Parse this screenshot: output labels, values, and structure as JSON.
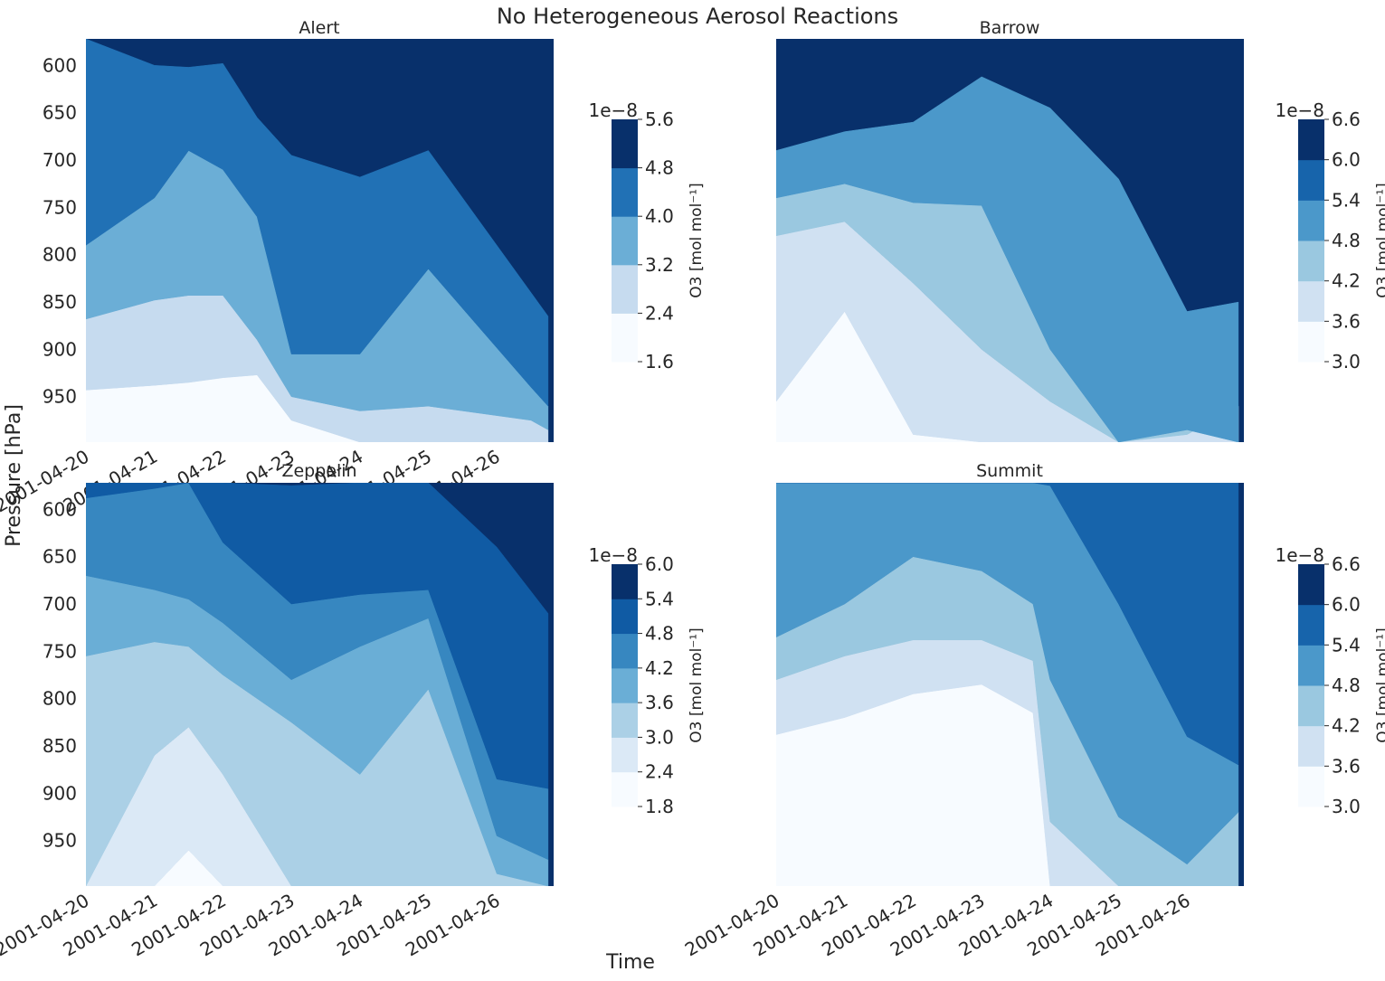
{
  "figure": {
    "title": "No Heterogeneous Aerosol Reactions",
    "ylabel": "Pressure [hPa]",
    "xlabel": "Time"
  },
  "chart_data": [
    {
      "type": "contour",
      "title": "Alert",
      "x_ticks": [
        "2001-04-20",
        "2001-04-21",
        "2001-04-22",
        "2001-04-23",
        "2001-04-24",
        "2001-04-25",
        "2001-04-26"
      ],
      "y_ticks": [
        600,
        650,
        700,
        750,
        800,
        850,
        900,
        950
      ],
      "ylim": [
        998,
        572
      ],
      "colorbar": {
        "levels": [
          "1.6",
          "2.4",
          "3.2",
          "4.0",
          "4.8",
          "5.6"
        ],
        "exponent": "1e−8",
        "label": "O3 [mol mol⁻¹]"
      },
      "colors": [
        "#f7fbff",
        "#c6dbef",
        "#6baed6",
        "#2171b5",
        "#08306b"
      ],
      "bands": [
        {
          "x": [
            "2001-04-20",
            "2001-04-21",
            "2001-04-21T12:00",
            "2001-04-22",
            "2001-04-22T12:00",
            "2001-04-23",
            "2001-04-24",
            "2001-04-25",
            "2001-04-26T12:00",
            "2001-04-26T18:00"
          ],
          "lower_hPa": [
            998,
            998,
            998,
            998,
            998,
            998,
            998,
            998,
            998,
            998
          ],
          "upper_hPa": [
            943,
            938,
            935,
            930,
            927,
            975,
            998,
            998,
            998,
            998
          ]
        },
        {
          "x": [
            "2001-04-20",
            "2001-04-21",
            "2001-04-21T12:00",
            "2001-04-22",
            "2001-04-22T12:00",
            "2001-04-23",
            "2001-04-24",
            "2001-04-25",
            "2001-04-26T12:00",
            "2001-04-26T18:00"
          ],
          "lower_hPa": [
            943,
            938,
            935,
            930,
            927,
            975,
            998,
            998,
            998,
            998
          ],
          "upper_hPa": [
            868,
            848,
            843,
            843,
            890,
            950,
            965,
            960,
            975,
            985
          ]
        },
        {
          "x": [
            "2001-04-20",
            "2001-04-21",
            "2001-04-21T12:00",
            "2001-04-22",
            "2001-04-22T12:00",
            "2001-04-23",
            "2001-04-24",
            "2001-04-25",
            "2001-04-26T12:00",
            "2001-04-26T18:00"
          ],
          "lower_hPa": [
            868,
            848,
            843,
            843,
            890,
            950,
            965,
            960,
            975,
            985
          ],
          "upper_hPa": [
            790,
            740,
            690,
            710,
            760,
            905,
            905,
            815,
            940,
            960
          ]
        },
        {
          "x": [
            "2001-04-20",
            "2001-04-21",
            "2001-04-21T12:00",
            "2001-04-22",
            "2001-04-22T12:00",
            "2001-04-23",
            "2001-04-24",
            "2001-04-25",
            "2001-04-26T12:00",
            "2001-04-26T18:00"
          ],
          "lower_hPa": [
            790,
            740,
            690,
            710,
            760,
            905,
            905,
            815,
            940,
            960
          ],
          "upper_hPa": [
            572,
            600,
            602,
            598,
            655,
            695,
            718,
            690,
            840,
            865
          ]
        }
      ]
    },
    {
      "type": "contour",
      "title": "Barrow",
      "x_ticks": [],
      "y_ticks": [],
      "ylim": [
        998,
        572
      ],
      "colorbar": {
        "levels": [
          "3.0",
          "3.6",
          "4.2",
          "4.8",
          "5.4",
          "6.0",
          "6.6"
        ],
        "exponent": "1e−8",
        "label": "O3 [mol mol⁻¹]"
      },
      "colors": [
        "#f7fbff",
        "#d0e1f2",
        "#9ac8e0",
        "#4b98ca",
        "#1764ab",
        "#08306b"
      ],
      "bands": [
        {
          "x": [
            "2001-04-20",
            "2001-04-21",
            "2001-04-22",
            "2001-04-23",
            "2001-04-24",
            "2001-04-25",
            "2001-04-26",
            "2001-04-26T18:00"
          ],
          "lower_hPa": [
            998,
            998,
            998,
            998,
            998,
            998,
            998,
            998
          ],
          "upper_hPa": [
            955,
            860,
            990,
            998,
            998,
            998,
            998,
            998
          ]
        },
        {
          "x": [
            "2001-04-20",
            "2001-04-21",
            "2001-04-22",
            "2001-04-23",
            "2001-04-24",
            "2001-04-25",
            "2001-04-26",
            "2001-04-26T18:00"
          ],
          "lower_hPa": [
            955,
            860,
            990,
            998,
            998,
            998,
            998,
            998
          ],
          "upper_hPa": [
            780,
            765,
            830,
            900,
            955,
            998,
            990,
            960
          ]
        },
        {
          "x": [
            "2001-04-20",
            "2001-04-21",
            "2001-04-22",
            "2001-04-23",
            "2001-04-24",
            "2001-04-25",
            "2001-04-26",
            "2001-04-26T18:00"
          ],
          "lower_hPa": [
            780,
            765,
            830,
            900,
            955,
            998,
            990,
            960
          ],
          "upper_hPa": [
            740,
            725,
            745,
            748,
            900,
            998,
            985,
            998
          ]
        },
        {
          "x": [
            "2001-04-20",
            "2001-04-21",
            "2001-04-22",
            "2001-04-23",
            "2001-04-24",
            "2001-04-25",
            "2001-04-26",
            "2001-04-26T18:00"
          ],
          "lower_hPa": [
            740,
            725,
            745,
            748,
            900,
            998,
            985,
            998
          ],
          "upper_hPa": [
            690,
            670,
            660,
            612,
            645,
            720,
            860,
            850
          ]
        }
      ]
    },
    {
      "type": "contour",
      "title": "Zeppelin",
      "x_ticks": [
        "2001-04-20",
        "2001-04-21",
        "2001-04-22",
        "2001-04-23",
        "2001-04-24",
        "2001-04-25",
        "2001-04-26"
      ],
      "y_ticks": [
        600,
        650,
        700,
        750,
        800,
        850,
        900,
        950
      ],
      "ylim": [
        998,
        572
      ],
      "colorbar": {
        "levels": [
          "1.8",
          "2.4",
          "3.0",
          "3.6",
          "4.2",
          "4.8",
          "5.4",
          "6.0"
        ],
        "exponent": "1e−8",
        "label": "O3 [mol mol⁻¹]"
      },
      "colors": [
        "#f7fbff",
        "#dbe9f6",
        "#abd0e6",
        "#6aaed6",
        "#3787c0",
        "#105ba4",
        "#08306b"
      ],
      "bands": [
        {
          "x": [
            "2001-04-20",
            "2001-04-21",
            "2001-04-21T12:00",
            "2001-04-22",
            "2001-04-23",
            "2001-04-24",
            "2001-04-25",
            "2001-04-26",
            "2001-04-26T18:00"
          ],
          "lower_hPa": [
            998,
            998,
            998,
            998,
            998,
            998,
            998,
            998,
            998
          ],
          "upper_hPa": [
            998,
            998,
            960,
            998,
            998,
            998,
            998,
            998,
            998
          ]
        },
        {
          "x": [
            "2001-04-20",
            "2001-04-21",
            "2001-04-21T12:00",
            "2001-04-22",
            "2001-04-23",
            "2001-04-24",
            "2001-04-25",
            "2001-04-26",
            "2001-04-26T18:00"
          ],
          "lower_hPa": [
            998,
            998,
            960,
            998,
            998,
            998,
            998,
            998,
            998
          ],
          "upper_hPa": [
            998,
            860,
            830,
            880,
            998,
            998,
            998,
            998,
            998
          ]
        },
        {
          "x": [
            "2001-04-20",
            "2001-04-21",
            "2001-04-21T12:00",
            "2001-04-22",
            "2001-04-23",
            "2001-04-24",
            "2001-04-25",
            "2001-04-26",
            "2001-04-26T18:00"
          ],
          "lower_hPa": [
            998,
            860,
            830,
            880,
            998,
            998,
            998,
            998,
            998
          ],
          "upper_hPa": [
            755,
            740,
            745,
            775,
            825,
            880,
            790,
            985,
            998
          ]
        },
        {
          "x": [
            "2001-04-20",
            "2001-04-21",
            "2001-04-21T12:00",
            "2001-04-22",
            "2001-04-23",
            "2001-04-24",
            "2001-04-25",
            "2001-04-26",
            "2001-04-26T18:00"
          ],
          "lower_hPa": [
            755,
            740,
            745,
            775,
            825,
            880,
            790,
            985,
            998
          ],
          "upper_hPa": [
            670,
            685,
            695,
            720,
            780,
            745,
            715,
            945,
            970
          ]
        },
        {
          "x": [
            "2001-04-20",
            "2001-04-21",
            "2001-04-21T12:00",
            "2001-04-22",
            "2001-04-23",
            "2001-04-24",
            "2001-04-25",
            "2001-04-26",
            "2001-04-26T18:00"
          ],
          "lower_hPa": [
            670,
            685,
            695,
            720,
            780,
            745,
            715,
            945,
            970
          ],
          "upper_hPa": [
            588,
            578,
            572,
            635,
            700,
            690,
            685,
            885,
            895
          ]
        },
        {
          "x": [
            "2001-04-20",
            "2001-04-21",
            "2001-04-21T12:00",
            "2001-04-22",
            "2001-04-23",
            "2001-04-24",
            "2001-04-25",
            "2001-04-26",
            "2001-04-26T18:00"
          ],
          "lower_hPa": [
            588,
            578,
            572,
            635,
            700,
            690,
            685,
            885,
            895
          ],
          "upper_hPa": [
            572,
            572,
            572,
            572,
            575,
            572,
            572,
            640,
            710
          ]
        }
      ]
    },
    {
      "type": "contour",
      "title": "Summit",
      "x_ticks": [
        "2001-04-20",
        "2001-04-21",
        "2001-04-22",
        "2001-04-23",
        "2001-04-24",
        "2001-04-25",
        "2001-04-26"
      ],
      "y_ticks": [],
      "ylim": [
        998,
        572
      ],
      "colorbar": {
        "levels": [
          "3.0",
          "3.6",
          "4.2",
          "4.8",
          "5.4",
          "6.0",
          "6.6"
        ],
        "exponent": "1e−8",
        "label": "O3 [mol mol⁻¹]"
      },
      "colors": [
        "#f7fbff",
        "#d0e1f2",
        "#9ac8e0",
        "#4b98ca",
        "#1764ab",
        "#08306b"
      ],
      "bands": [
        {
          "x": [
            "2001-04-20",
            "2001-04-21",
            "2001-04-22",
            "2001-04-23",
            "2001-04-23T18:00",
            "2001-04-24",
            "2001-04-25",
            "2001-04-26",
            "2001-04-26T18:00"
          ],
          "lower_hPa": [
            998,
            998,
            998,
            998,
            998,
            998,
            998,
            998,
            998
          ],
          "upper_hPa": [
            838,
            820,
            795,
            785,
            815,
            998,
            998,
            998,
            998
          ]
        },
        {
          "x": [
            "2001-04-20",
            "2001-04-21",
            "2001-04-22",
            "2001-04-23",
            "2001-04-23T18:00",
            "2001-04-24",
            "2001-04-25",
            "2001-04-26",
            "2001-04-26T18:00"
          ],
          "lower_hPa": [
            838,
            820,
            795,
            785,
            815,
            998,
            998,
            998,
            998
          ],
          "upper_hPa": [
            780,
            755,
            738,
            738,
            760,
            930,
            998,
            998,
            998
          ]
        },
        {
          "x": [
            "2001-04-20",
            "2001-04-21",
            "2001-04-22",
            "2001-04-23",
            "2001-04-23T18:00",
            "2001-04-24",
            "2001-04-25",
            "2001-04-26",
            "2001-04-26T18:00"
          ],
          "lower_hPa": [
            780,
            755,
            738,
            738,
            760,
            930,
            998,
            998,
            998
          ],
          "upper_hPa": [
            735,
            700,
            650,
            665,
            700,
            780,
            925,
            975,
            920
          ]
        },
        {
          "x": [
            "2001-04-20",
            "2001-04-21",
            "2001-04-22",
            "2001-04-23",
            "2001-04-23T18:00",
            "2001-04-24",
            "2001-04-25",
            "2001-04-26",
            "2001-04-26T18:00"
          ],
          "lower_hPa": [
            735,
            700,
            650,
            665,
            700,
            780,
            925,
            975,
            920
          ],
          "upper_hPa": [
            572,
            572,
            572,
            572,
            572,
            575,
            700,
            840,
            870
          ]
        },
        {
          "x": [
            "2001-04-20",
            "2001-04-21",
            "2001-04-22",
            "2001-04-23",
            "2001-04-23T18:00",
            "2001-04-24",
            "2001-04-25",
            "2001-04-26",
            "2001-04-26T18:00"
          ],
          "lower_hPa": [
            572,
            572,
            572,
            572,
            572,
            575,
            700,
            840,
            870
          ],
          "upper_hPa": [
            572,
            572,
            572,
            572,
            572,
            572,
            572,
            572,
            572
          ]
        }
      ]
    }
  ]
}
